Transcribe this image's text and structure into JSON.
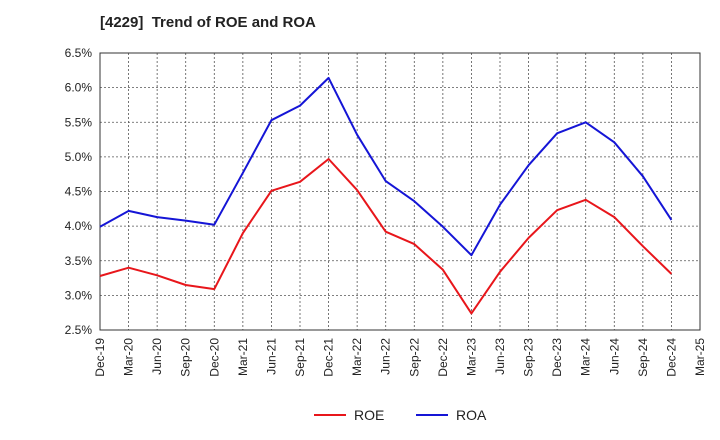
{
  "chart_data": {
    "type": "line",
    "title": "[4229]  Trend of ROE and ROA",
    "xlabel": "",
    "ylabel": "",
    "categories": [
      "Dec-19",
      "Mar-20",
      "Jun-20",
      "Sep-20",
      "Dec-20",
      "Mar-21",
      "Jun-21",
      "Sep-21",
      "Dec-21",
      "Mar-22",
      "Jun-22",
      "Sep-22",
      "Dec-22",
      "Mar-23",
      "Jun-23",
      "Sep-23",
      "Dec-23",
      "Mar-24",
      "Jun-24",
      "Sep-24",
      "Dec-24",
      "Mar-25"
    ],
    "yticks": [
      "2.5%",
      "3.0%",
      "3.5%",
      "4.0%",
      "4.5%",
      "5.0%",
      "5.5%",
      "6.0%",
      "6.5%"
    ],
    "ylim": [
      2.5,
      6.5
    ],
    "grid": true,
    "legend_position": "bottom",
    "series": [
      {
        "name": "ROE",
        "color": "#e8161b",
        "values": [
          3.28,
          3.4,
          3.29,
          3.15,
          3.09,
          3.9,
          4.51,
          4.64,
          4.97,
          4.52,
          3.92,
          3.74,
          3.37,
          2.74,
          3.34,
          3.83,
          4.23,
          4.38,
          4.13,
          3.71,
          3.31,
          null
        ]
      },
      {
        "name": "ROA",
        "color": "#1515d6",
        "values": [
          3.99,
          4.22,
          4.13,
          4.08,
          4.02,
          4.77,
          5.53,
          5.74,
          6.14,
          5.32,
          4.65,
          4.36,
          3.99,
          3.58,
          4.31,
          4.88,
          5.34,
          5.5,
          5.21,
          4.72,
          4.09,
          null
        ]
      }
    ]
  }
}
